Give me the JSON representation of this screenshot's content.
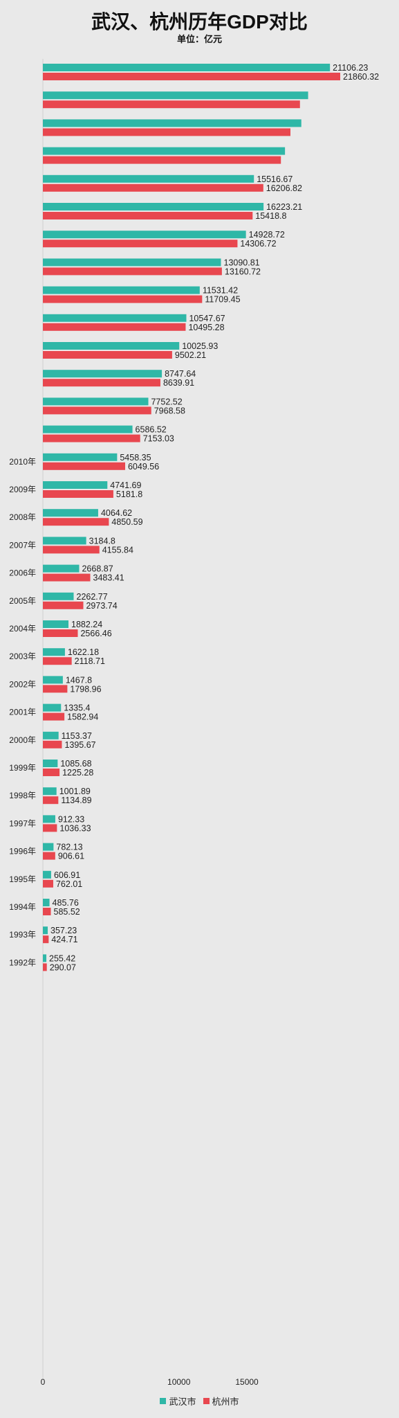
{
  "title": "武汉、杭州历年GDP对比",
  "subtitle": "单位：亿元",
  "colors": {
    "wuhan": "#2fb7a7",
    "hangzhou": "#e8474f"
  },
  "legend": [
    {
      "name": "武汉市",
      "color": "#2fb7a7"
    },
    {
      "name": "杭州市",
      "color": "#e8474f"
    }
  ],
  "chart_data": {
    "type": "bar",
    "orientation": "horizontal",
    "categories": [
      "",
      "",
      "",
      "",
      "",
      "",
      "",
      "",
      "",
      "",
      "",
      "",
      "",
      "",
      "2010年",
      "2009年",
      "2008年",
      "2007年",
      "2006年",
      "2005年",
      "2004年",
      "2003年",
      "2002年",
      "2001年",
      "2000年",
      "1999年",
      "1998年",
      "1997年",
      "1996年",
      "1995年",
      "1994年",
      "1993年",
      "1992年"
    ],
    "series": [
      {
        "name": "武汉市",
        "values": [
          21106.23,
          19500,
          19000,
          17800,
          15516.67,
          16223.21,
          14928.72,
          13090.81,
          11531.42,
          10547.67,
          10025.93,
          8747.64,
          7752.52,
          6586.52,
          5458.35,
          4741.69,
          4064.62,
          3184.8,
          2668.87,
          2262.77,
          1882.24,
          1622.18,
          1467.8,
          1335.4,
          1153.37,
          1085.68,
          1001.89,
          912.33,
          782.13,
          606.91,
          485.76,
          357.23,
          255.42
        ]
      },
      {
        "name": "杭州市",
        "values": [
          21860.32,
          18900,
          18200,
          17500,
          16206.82,
          15418.8,
          14306.72,
          13160.72,
          11709.45,
          10495.28,
          9502.21,
          8639.91,
          7968.58,
          7153.03,
          6049.56,
          5181.8,
          4850.59,
          4155.84,
          3483.41,
          2973.74,
          2566.46,
          2118.71,
          1798.96,
          1582.94,
          1395.67,
          1225.28,
          1134.89,
          1036.33,
          906.61,
          762.01,
          585.52,
          424.71,
          290.07
        ]
      }
    ],
    "value_labels": {
      "武汉市": [
        "21106.23",
        "",
        "",
        "",
        "15516.67",
        "16223.21",
        "14928.72",
        "13090.81",
        "11531.42",
        "10547.67",
        "10025.93",
        "8747.64",
        "7752.52",
        "6586.52",
        "5458.35",
        "4741.69",
        "4064.62",
        "3184.8",
        "2668.87",
        "2262.77",
        "1882.24",
        "1622.18",
        "1467.8",
        "1335.4",
        "1153.37",
        "1085.68",
        "1001.89",
        "912.33",
        "782.13",
        "606.91",
        "485.76",
        "357.23",
        "255.42"
      ],
      "杭州市": [
        "21860.32",
        "",
        "",
        "",
        "16206.82",
        "15418.8",
        "14306.72",
        "13160.72",
        "11709.45",
        "10495.28",
        "9502.21",
        "8639.91",
        "7968.58",
        "7153.03",
        "6049.56",
        "5181.8",
        "4850.59",
        "4155.84",
        "3483.41",
        "2973.74",
        "2566.46",
        "2118.71",
        "1798.96",
        "1582.94",
        "1395.67",
        "1225.28",
        "1134.89",
        "1036.33",
        "906.61",
        "762.01",
        "585.52",
        "424.71",
        "290.07"
      ]
    },
    "x_ticks": [
      {
        "value": 0,
        "label": "0"
      },
      {
        "value": 10000,
        "label": "10000"
      },
      {
        "value": 15000,
        "label": "15000"
      }
    ],
    "xlim": [
      0,
      21860.32
    ],
    "grid": false,
    "legend_position": "bottom"
  }
}
